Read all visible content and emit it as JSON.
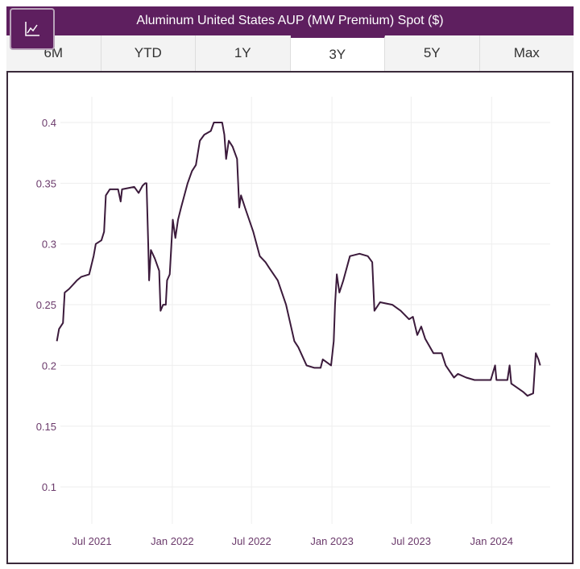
{
  "header": {
    "title": "Aluminum United States AUP (MW Premium) Spot ($)",
    "icon": "line-chart-icon"
  },
  "tabs": [
    {
      "label": "6M"
    },
    {
      "label": "YTD"
    },
    {
      "label": "1Y"
    },
    {
      "label": "3Y",
      "active": true
    },
    {
      "label": "5Y"
    },
    {
      "label": "Max"
    }
  ],
  "colors": {
    "brand": "#5e1f5f",
    "line": "#3b1a3b",
    "tick_label": "#6b3a6b"
  },
  "chart_data": {
    "type": "line",
    "title": "",
    "xlabel": "",
    "ylabel": "",
    "grid": true,
    "legend": "none",
    "ylim": [
      0.05,
      0.42
    ],
    "yticks": [
      0.1,
      0.15,
      0.2,
      0.25,
      0.3,
      0.35,
      0.4
    ],
    "ytick_labels": [
      "0.1",
      "0.15",
      "0.2",
      "0.25",
      "0.3",
      "0.35",
      "0.4"
    ],
    "xticks": [
      "2021-07-01",
      "2022-01-01",
      "2022-07-01",
      "2023-01-01",
      "2023-07-01",
      "2024-01-01"
    ],
    "xtick_labels": [
      "Jul 2021",
      "Jan 2022",
      "Jul 2022",
      "Jan 2023",
      "Jul 2023",
      "Jan 2024"
    ],
    "series": [
      {
        "points": [
          [
            "2021-04-12",
            0.22
          ],
          [
            "2021-04-17",
            0.23
          ],
          [
            "2021-04-26",
            0.235
          ],
          [
            "2021-04-30",
            0.26
          ],
          [
            "2021-05-10",
            0.263
          ],
          [
            "2021-05-28",
            0.27
          ],
          [
            "2021-06-07",
            0.273
          ],
          [
            "2021-06-25",
            0.275
          ],
          [
            "2021-07-05",
            0.29
          ],
          [
            "2021-07-10",
            0.3
          ],
          [
            "2021-07-23",
            0.303
          ],
          [
            "2021-07-29",
            0.31
          ],
          [
            "2021-08-02",
            0.34
          ],
          [
            "2021-08-11",
            0.345
          ],
          [
            "2021-08-30",
            0.345
          ],
          [
            "2021-09-05",
            0.335
          ],
          [
            "2021-09-08",
            0.345
          ],
          [
            "2021-10-06",
            0.347
          ],
          [
            "2021-10-16",
            0.342
          ],
          [
            "2021-10-25",
            0.348
          ],
          [
            "2021-10-31",
            0.35
          ],
          [
            "2021-11-03",
            0.35
          ],
          [
            "2021-11-07",
            0.3
          ],
          [
            "2021-11-09",
            0.27
          ],
          [
            "2021-11-13",
            0.295
          ],
          [
            "2021-11-22",
            0.288
          ],
          [
            "2021-12-02",
            0.278
          ],
          [
            "2021-12-05",
            0.245
          ],
          [
            "2021-12-11",
            0.25
          ],
          [
            "2021-12-17",
            0.25
          ],
          [
            "2021-12-20",
            0.27
          ],
          [
            "2021-12-26",
            0.275
          ],
          [
            "2022-01-02",
            0.32
          ],
          [
            "2022-01-08",
            0.305
          ],
          [
            "2022-01-14",
            0.32
          ],
          [
            "2022-01-21",
            0.33
          ],
          [
            "2022-02-05",
            0.35
          ],
          [
            "2022-02-15",
            0.36
          ],
          [
            "2022-02-24",
            0.365
          ],
          [
            "2022-03-05",
            0.385
          ],
          [
            "2022-03-15",
            0.39
          ],
          [
            "2022-03-30",
            0.393
          ],
          [
            "2022-04-06",
            0.4
          ],
          [
            "2022-04-25",
            0.4
          ],
          [
            "2022-04-30",
            0.39
          ],
          [
            "2022-05-04",
            0.37
          ],
          [
            "2022-05-10",
            0.385
          ],
          [
            "2022-05-19",
            0.38
          ],
          [
            "2022-05-29",
            0.37
          ],
          [
            "2022-06-03",
            0.33
          ],
          [
            "2022-06-07",
            0.34
          ],
          [
            "2022-06-16",
            0.33
          ],
          [
            "2022-07-05",
            0.31
          ],
          [
            "2022-07-20",
            0.29
          ],
          [
            "2022-08-02",
            0.285
          ],
          [
            "2022-08-11",
            0.28
          ],
          [
            "2022-08-30",
            0.27
          ],
          [
            "2022-09-18",
            0.25
          ],
          [
            "2022-10-07",
            0.22
          ],
          [
            "2022-10-16",
            0.215
          ],
          [
            "2022-11-04",
            0.2
          ],
          [
            "2022-11-22",
            0.198
          ],
          [
            "2022-12-06",
            0.198
          ],
          [
            "2022-12-11",
            0.205
          ],
          [
            "2022-12-30",
            0.2
          ],
          [
            "2023-01-05",
            0.22
          ],
          [
            "2023-01-08",
            0.25
          ],
          [
            "2023-01-12",
            0.275
          ],
          [
            "2023-01-18",
            0.26
          ],
          [
            "2023-01-27",
            0.27
          ],
          [
            "2023-02-11",
            0.29
          ],
          [
            "2023-03-05",
            0.292
          ],
          [
            "2023-03-24",
            0.29
          ],
          [
            "2023-04-03",
            0.285
          ],
          [
            "2023-04-08",
            0.245
          ],
          [
            "2023-04-21",
            0.252
          ],
          [
            "2023-05-19",
            0.25
          ],
          [
            "2023-06-07",
            0.245
          ],
          [
            "2023-06-26",
            0.238
          ],
          [
            "2023-07-05",
            0.24
          ],
          [
            "2023-07-15",
            0.225
          ],
          [
            "2023-07-24",
            0.232
          ],
          [
            "2023-08-02",
            0.222
          ],
          [
            "2023-08-21",
            0.21
          ],
          [
            "2023-09-09",
            0.21
          ],
          [
            "2023-09-18",
            0.2
          ],
          [
            "2023-10-07",
            0.19
          ],
          [
            "2023-10-16",
            0.193
          ],
          [
            "2023-11-04",
            0.19
          ],
          [
            "2023-11-23",
            0.188
          ],
          [
            "2023-12-30",
            0.188
          ],
          [
            "2024-01-09",
            0.2
          ],
          [
            "2024-01-12",
            0.188
          ],
          [
            "2024-02-06",
            0.188
          ],
          [
            "2024-02-11",
            0.2
          ],
          [
            "2024-02-15",
            0.185
          ],
          [
            "2024-03-14",
            0.178
          ],
          [
            "2024-03-23",
            0.175
          ],
          [
            "2024-04-05",
            0.177
          ],
          [
            "2024-04-11",
            0.21
          ],
          [
            "2024-04-17",
            0.205
          ],
          [
            "2024-04-21",
            0.2
          ]
        ]
      }
    ]
  }
}
